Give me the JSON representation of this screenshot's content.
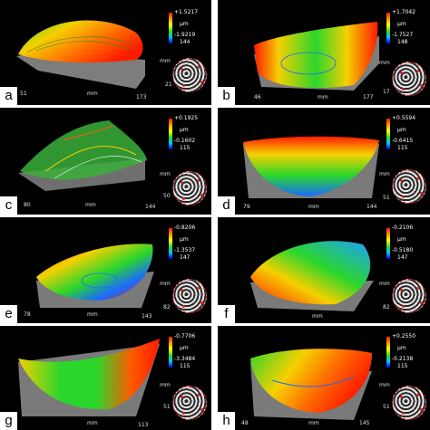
{
  "panels": [
    {
      "letter": "a",
      "max": "+1.5217",
      "unit": "µm",
      "min": "-1.9219",
      "n": "144",
      "axis_left": "51",
      "axis_mm": "mm",
      "axis_right": "173",
      "axis_side_mm": "mm",
      "axis_side": "21"
    },
    {
      "letter": "b",
      "max": "+1.7042",
      "unit": "µm",
      "min": "-1.7527",
      "n": "148",
      "axis_left": "46",
      "axis_mm": "mm",
      "axis_right": "177",
      "axis_side_mm": "mm",
      "axis_side": "17"
    },
    {
      "letter": "c",
      "max": "+0.1925",
      "unit": "µm",
      "min": "-0.1602",
      "n": "115",
      "axis_left": "80",
      "axis_mm": "mm",
      "axis_right": "144",
      "axis_side_mm": "mm",
      "axis_side": "50"
    },
    {
      "letter": "d",
      "max": "+0.5594",
      "unit": "µm",
      "min": "-0.6415",
      "n": "115",
      "axis_left": "79",
      "axis_mm": "mm",
      "axis_right": "144",
      "axis_side_mm": "mm",
      "axis_side": "51"
    },
    {
      "letter": "e",
      "max": "-0.8206",
      "unit": "µm",
      "min": "-1.3537",
      "n": "147",
      "axis_left": "78",
      "axis_mm": "mm",
      "axis_right": "143",
      "axis_side_mm": "mm",
      "axis_side": "82"
    },
    {
      "letter": "f",
      "max": "-0.2106",
      "unit": "µm",
      "min": "-0.5180",
      "n": "147",
      "axis_left": "",
      "axis_mm": "mm",
      "axis_right": "",
      "axis_side_mm": "mm",
      "axis_side": "82"
    },
    {
      "letter": "g",
      "max": "-0.7706",
      "unit": "µm",
      "min": "-3.3484",
      "n": "115",
      "axis_left": "",
      "axis_mm": "mm",
      "axis_right": "113",
      "axis_side_mm": "mm",
      "axis_side": "51"
    },
    {
      "letter": "h",
      "max": "+0.2550",
      "unit": "µm",
      "min": "-0.2138",
      "n": "115",
      "axis_left": "48",
      "axis_mm": "mm",
      "axis_right": "145",
      "axis_side_mm": "mm",
      "axis_side": "51"
    }
  ],
  "surface_colors": {
    "hot": "#ff2a00",
    "warm": "#f5d000",
    "mid": "#3cc83c",
    "cool": "#1a6bff",
    "frame": "#a9a9a9"
  }
}
